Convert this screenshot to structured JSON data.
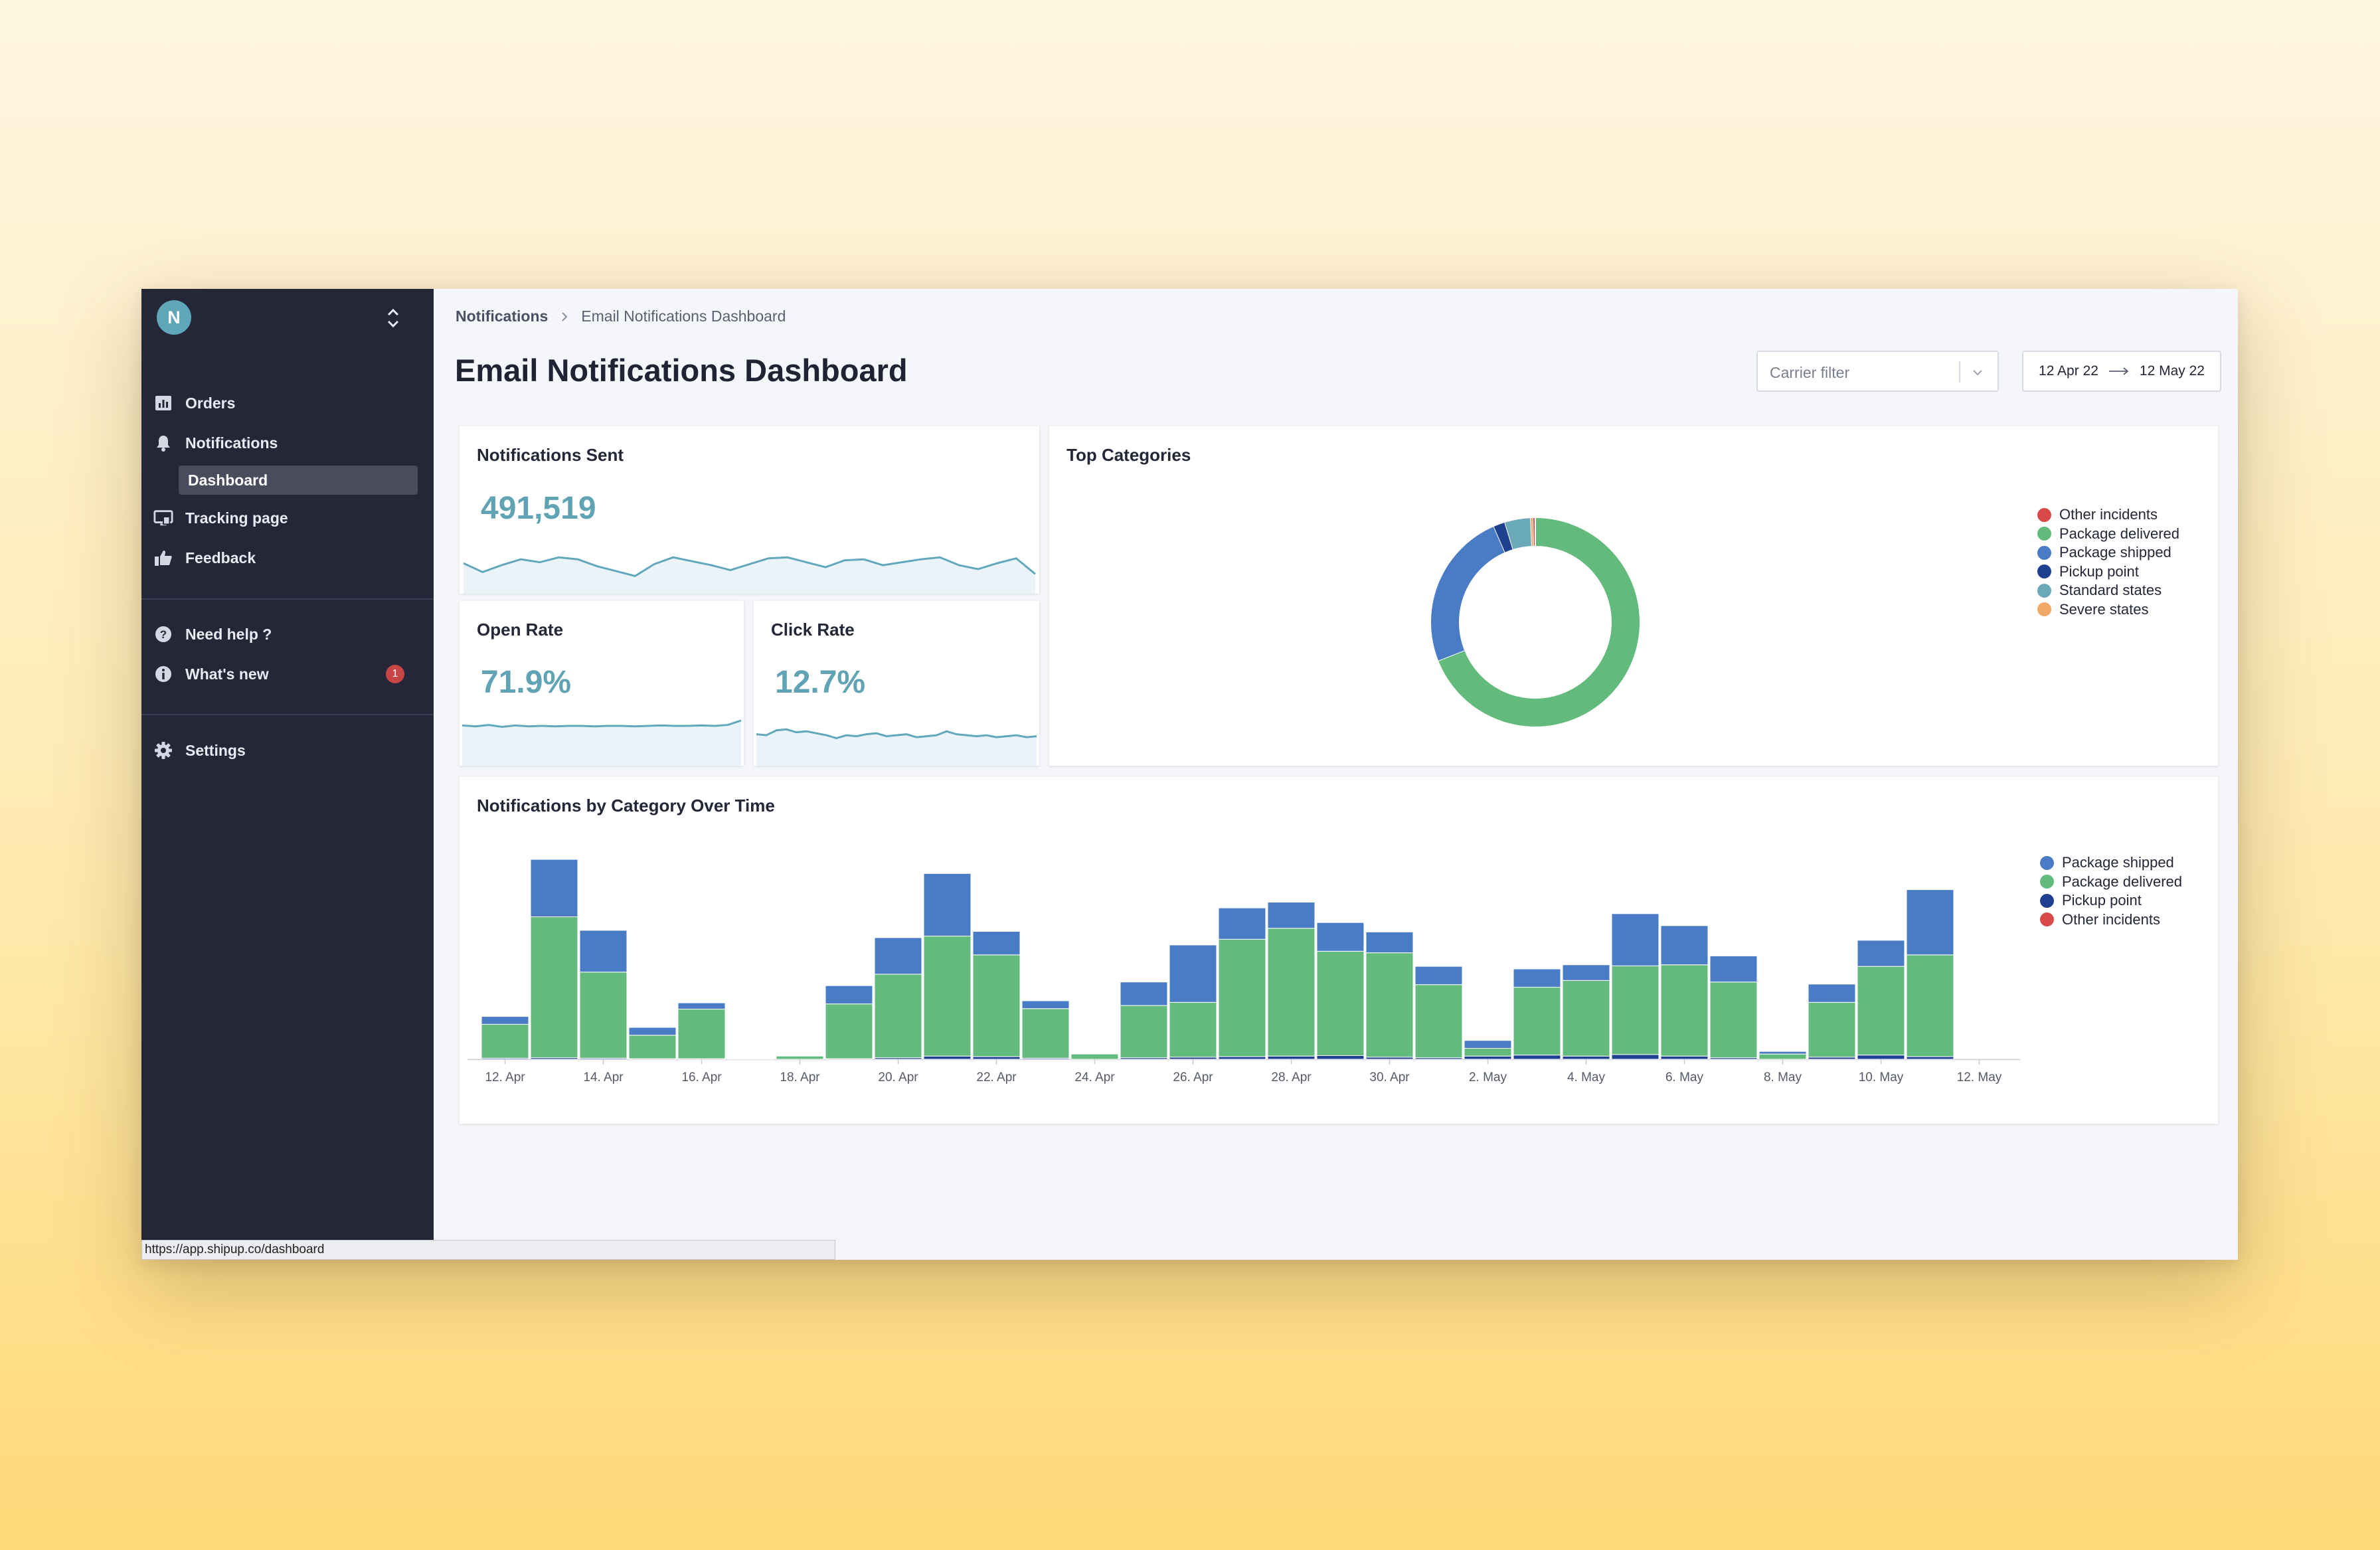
{
  "sidebar": {
    "avatar_letter": "N",
    "items": [
      {
        "label": "Orders",
        "icon": "bar-chart-icon"
      },
      {
        "label": "Notifications",
        "icon": "bell-icon"
      },
      {
        "label": "Tracking page",
        "icon": "monitor-icon"
      },
      {
        "label": "Feedback",
        "icon": "thumbs-up-icon"
      }
    ],
    "subitem": "Dashboard",
    "help": [
      {
        "label": "Need help ?",
        "icon": "question-icon"
      },
      {
        "label": "What's new",
        "icon": "info-icon",
        "badge": "1"
      }
    ],
    "settings": {
      "label": "Settings",
      "icon": "gear-icon"
    }
  },
  "breadcrumb": {
    "parent": "Notifications",
    "current": "Email Notifications Dashboard"
  },
  "page_title": "Email Notifications Dashboard",
  "carrier_filter": {
    "placeholder": "Carrier filter"
  },
  "date_range": {
    "start": "12 Apr 22",
    "end": "12 May 22"
  },
  "cards": {
    "sent": {
      "title": "Notifications Sent",
      "value": "491,519"
    },
    "open": {
      "title": "Open Rate",
      "value": "71.9%"
    },
    "click": {
      "title": "Click Rate",
      "value": "12.7%"
    },
    "top": {
      "title": "Top Categories"
    },
    "overtime": {
      "title": "Notifications by Category Over Time"
    }
  },
  "status_url": "https://app.shipup.co/dashboard",
  "colors": {
    "shipped": "#4a7cc5",
    "delivered": "#62bb7d",
    "pickup": "#1f3f8f",
    "other": "#d84a4a",
    "standard": "#6aa9b9",
    "severe": "#f0a968",
    "spark": "#62a8bd"
  },
  "chart_data": [
    {
      "type": "pie",
      "title": "Top Categories",
      "legend": [
        "Other incidents",
        "Package delivered",
        "Package shipped",
        "Pickup point",
        "Standard states",
        "Severe states"
      ],
      "legend_colors": [
        "#d84a4a",
        "#62bb7d",
        "#4a7cc5",
        "#1f3f8f",
        "#6aa9b9",
        "#f0a968"
      ],
      "slices": [
        {
          "name": "Package delivered",
          "value": 69.0,
          "color": "#62bb7d"
        },
        {
          "name": "Package shipped",
          "value": 24.5,
          "color": "#4a7cc5"
        },
        {
          "name": "Pickup point",
          "value": 1.8,
          "color": "#1f3f8f"
        },
        {
          "name": "Standard states",
          "value": 4.0,
          "color": "#6aa9b9"
        },
        {
          "name": "Severe states",
          "value": 0.4,
          "color": "#f0a968"
        },
        {
          "name": "Other incidents",
          "value": 0.3,
          "color": "#d84a4a"
        }
      ]
    },
    {
      "type": "bar",
      "stacked": true,
      "title": "Notifications by Category Over Time",
      "x_ticks": [
        "12. Apr",
        "14. Apr",
        "16. Apr",
        "18. Apr",
        "20. Apr",
        "22. Apr",
        "24. Apr",
        "26. Apr",
        "28. Apr",
        "30. Apr",
        "2. May",
        "4. May",
        "6. May",
        "8. May",
        "10. May",
        "12. May"
      ],
      "legend": [
        "Package shipped",
        "Package delivered",
        "Pickup point",
        "Other incidents"
      ],
      "legend_colors": [
        "#4a7cc5",
        "#62bb7d",
        "#1f3f8f",
        "#d84a4a"
      ],
      "series": [
        {
          "name": "Pickup point",
          "color": "#1f3f8f",
          "values": [
            0.2,
            0.3,
            0.2,
            0.1,
            0.1,
            0,
            0,
            0.1,
            0.3,
            0.6,
            0.5,
            0.2,
            0,
            0.3,
            0.4,
            0.5,
            0.6,
            0.7,
            0.4,
            0.3,
            0.6,
            0.8,
            0.6,
            0.9,
            0.6,
            0.3,
            0,
            0.4,
            0.8,
            0.5
          ]
        },
        {
          "name": "Package delivered",
          "color": "#62bb7d",
          "values": [
            6.5,
            27,
            16.5,
            4.5,
            9.5,
            0.1,
            0.6,
            10.5,
            16,
            23,
            19.5,
            9.5,
            1,
            10,
            10.5,
            22.5,
            24.5,
            20,
            20,
            14,
            1.5,
            13,
            14.5,
            17,
            17.5,
            14.5,
            1,
            10.5,
            17,
            19.5
          ]
        },
        {
          "name": "Package shipped",
          "color": "#4a7cc5",
          "values": [
            1.5,
            11,
            8,
            1.5,
            1.2,
            0,
            0,
            3.5,
            7,
            12,
            4.5,
            1.5,
            0,
            4.5,
            11,
            6,
            5,
            5.5,
            4,
            3.5,
            1.5,
            3.5,
            3,
            10,
            7.5,
            5,
            0.5,
            3.5,
            5,
            12.5
          ]
        },
        {
          "name": "Other incidents",
          "color": "#d84a4a",
          "values": [
            0,
            0,
            0,
            0,
            0,
            0,
            0,
            0,
            0,
            0,
            0,
            0,
            0,
            0,
            0,
            0,
            0,
            0,
            0,
            0,
            0,
            0,
            0,
            0,
            0,
            0,
            0,
            0,
            0,
            0
          ]
        }
      ],
      "ylim": [
        0,
        42
      ]
    }
  ],
  "sparklines": {
    "sent": [
      62,
      44,
      58,
      70,
      64,
      74,
      70,
      56,
      46,
      36,
      60,
      74,
      66,
      58,
      48,
      60,
      72,
      74,
      64,
      54,
      68,
      70,
      58,
      64,
      70,
      74,
      58,
      50,
      62,
      72,
      40
    ],
    "open": [
      82,
      80,
      83,
      79,
      82,
      80,
      81,
      80,
      81,
      81,
      80,
      81,
      81,
      80,
      81,
      82,
      81,
      81,
      82,
      81,
      83,
      92
    ],
    "click": [
      64,
      62,
      72,
      74,
      68,
      70,
      66,
      62,
      56,
      62,
      60,
      64,
      66,
      60,
      62,
      64,
      58,
      60,
      62,
      70,
      64,
      62,
      60,
      62,
      58,
      60,
      62,
      58,
      60
    ]
  }
}
